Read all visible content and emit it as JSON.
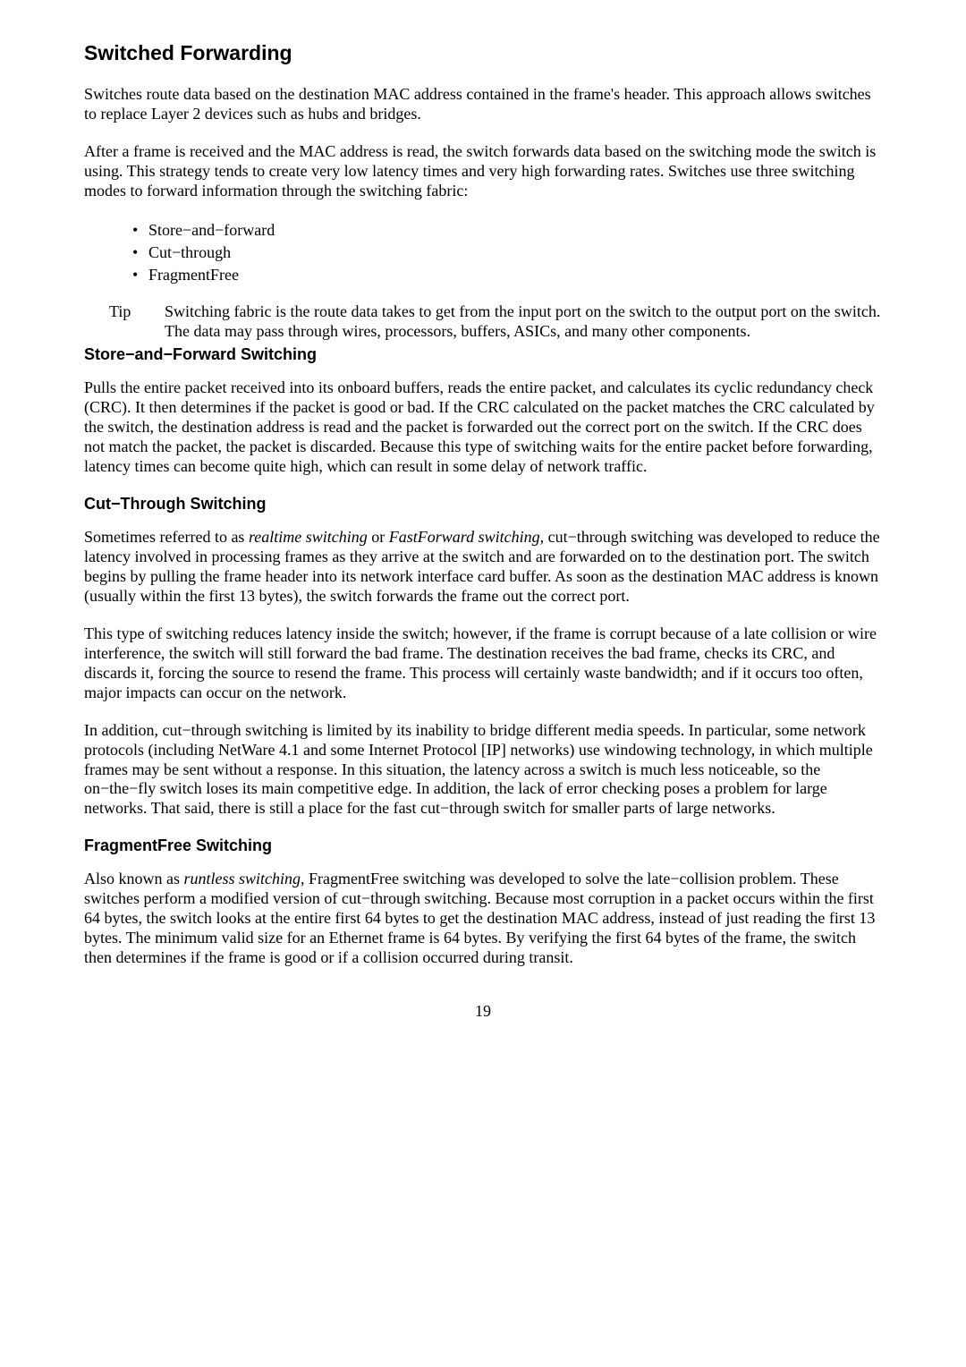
{
  "page_number": "19",
  "section1": {
    "heading": "Switched Forwarding",
    "p1": "Switches route data based on the destination MAC address contained in the frame's header. This approach allows switches to replace Layer 2 devices such as hubs and bridges.",
    "p2": "After a frame is received and the MAC address is read, the switch forwards data based on the switching mode the switch is using. This strategy tends to create very low latency times and very high forwarding rates. Switches use three switching modes to forward information through the switching fabric:",
    "bullets": [
      "Store−and−forward",
      "Cut−through",
      "FragmentFree"
    ],
    "tip_label": "Tip",
    "tip_body": "Switching fabric is the route data takes to get from the input port on the switch to the output port on the switch. The data may pass through wires, processors, buffers, ASICs, and many other components."
  },
  "section2": {
    "heading": "Store−and−Forward Switching",
    "p1": "Pulls the entire packet received into its onboard buffers, reads the entire packet, and calculates its cyclic redundancy check (CRC). It then determines if the packet is good or bad. If the CRC calculated on the packet matches the CRC calculated by the switch, the destination address is read and the packet is forwarded out the correct port on the switch. If the CRC does not match the packet, the packet is discarded. Because this type of switching waits for the entire packet before forwarding, latency times can become quite high, which can result in some delay of network traffic."
  },
  "section3": {
    "heading": "Cut−Through Switching",
    "p1_a": "Sometimes referred to as ",
    "p1_i1": "realtime switching",
    "p1_b": " or ",
    "p1_i2": "FastForward switching",
    "p1_c": ", cut−through switching was developed to reduce the latency involved in processing frames as they arrive at the switch and are forwarded on to the destination port. The switch begins by pulling the frame header into its network interface card buffer. As soon as the destination MAC address is known (usually within the first 13 bytes), the switch forwards the frame out the correct port.",
    "p2": "This type of switching reduces latency inside the switch; however, if the frame is corrupt because of a late collision or wire interference, the switch will still forward the bad frame. The destination receives the bad frame, checks its CRC, and discards it, forcing the source to resend the frame. This process will certainly waste bandwidth; and if it occurs too often, major impacts can occur on the network.",
    "p3": "In addition, cut−through switching is limited by its inability to bridge different media speeds. In particular, some network protocols (including NetWare 4.1 and some Internet Protocol [IP] networks) use windowing technology, in which multiple frames may be sent without a response. In this situation, the latency across a switch is much less noticeable, so the on−the−fly switch loses its main competitive edge. In addition, the lack of error checking poses a problem for large networks. That said, there is still a place for the fast cut−through switch for smaller parts of large networks."
  },
  "section4": {
    "heading": "FragmentFree Switching",
    "p1_a": "Also known as ",
    "p1_i1": "runtless switching",
    "p1_b": ", FragmentFree switching was developed to solve the late−collision problem. These switches perform a modified version of cut−through switching. Because most corruption in a packet occurs within the first 64 bytes, the switch looks at the entire first 64 bytes to get the destination MAC address, instead of just reading the first 13 bytes. The minimum valid size for an Ethernet frame is 64 bytes. By verifying the first 64 bytes of the frame, the switch then determines if the frame is good or if a collision occurred during transit."
  }
}
